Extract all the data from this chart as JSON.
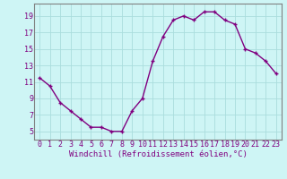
{
  "x": [
    0,
    1,
    2,
    3,
    4,
    5,
    6,
    7,
    8,
    9,
    10,
    11,
    12,
    13,
    14,
    15,
    16,
    17,
    18,
    19,
    20,
    21,
    22,
    23
  ],
  "y": [
    11.5,
    10.5,
    8.5,
    7.5,
    6.5,
    5.5,
    5.5,
    5.0,
    5.0,
    7.5,
    9.0,
    13.5,
    16.5,
    18.5,
    19.0,
    18.5,
    19.5,
    19.5,
    18.5,
    18.0,
    15.0,
    14.5,
    13.5,
    12.0
  ],
  "xlabel": "Windchill (Refroidissement éolien,°C)",
  "ylim": [
    4,
    20.5
  ],
  "xlim": [
    -0.5,
    23.5
  ],
  "yticks": [
    5,
    7,
    9,
    11,
    13,
    15,
    17,
    19
  ],
  "xticks": [
    0,
    1,
    2,
    3,
    4,
    5,
    6,
    7,
    8,
    9,
    10,
    11,
    12,
    13,
    14,
    15,
    16,
    17,
    18,
    19,
    20,
    21,
    22,
    23
  ],
  "line_color": "#800080",
  "marker": "+",
  "bg_color": "#cef5f5",
  "grid_color": "#aadddd",
  "font_color": "#800080",
  "spine_color": "#808080",
  "xlabel_fontsize": 6.5,
  "tick_fontsize": 6,
  "marker_size": 3,
  "linewidth": 1.0
}
